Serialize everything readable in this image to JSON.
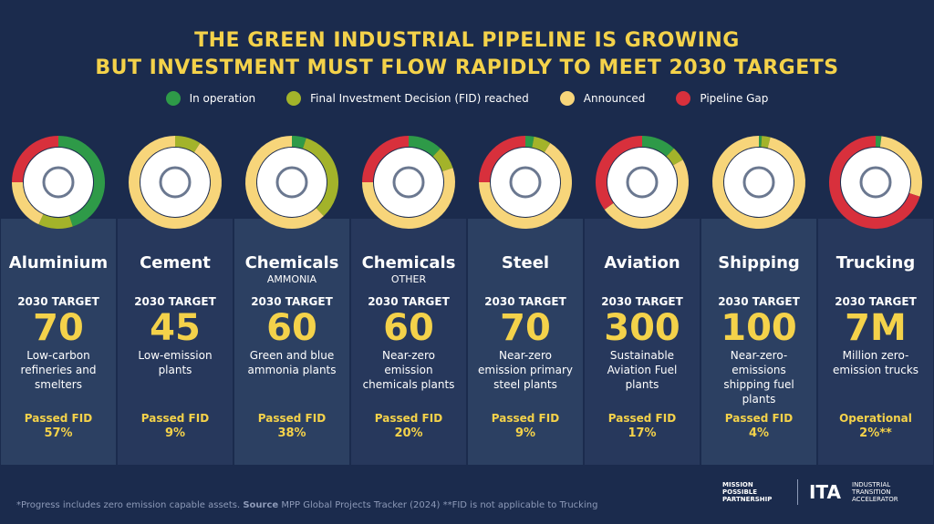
{
  "header": {
    "title_line1": "THE GREEN INDUSTRIAL PIPELINE IS GROWING",
    "title_line2": "BUT INVESTMENT MUST FLOW RAPIDLY TO MEET 2030 TARGETS"
  },
  "legend": [
    {
      "name": "In operation",
      "color": "#2e9a48"
    },
    {
      "name": "Final Investment Decision (FID) reached",
      "color": "#a3b32a"
    },
    {
      "name": "Announced",
      "color": "#f7d57a"
    },
    {
      "name": "Pipeline Gap",
      "color": "#d8303c"
    }
  ],
  "sectors": [
    {
      "name": "Aluminium",
      "target_label": "2030 TARGET",
      "target": "70",
      "description": "Low-carbon refineries and smelters",
      "status_label": "Passed FID",
      "status": "57%",
      "ring": [
        45,
        12,
        18,
        25
      ]
    },
    {
      "name": "Cement",
      "target_label": "2030 TARGET",
      "target": "45",
      "description": "Low-emission plants",
      "status_label": "Passed FID",
      "status": "9%",
      "ring": [
        0,
        9,
        91,
        0
      ]
    },
    {
      "name": "Chemicals",
      "subtitle": "AMMONIA",
      "target_label": "2030 TARGET",
      "target": "60",
      "description": "Green and blue ammonia plants",
      "status_label": "Passed FID",
      "status": "38%",
      "ring": [
        5,
        33,
        62,
        0
      ]
    },
    {
      "name": "Chemicals",
      "subtitle": "OTHER",
      "target_label": "2030 TARGET",
      "target": "60",
      "description": "Near-zero emission chemicals plants",
      "status_label": "Passed FID",
      "status": "20%",
      "ring": [
        12,
        8,
        55,
        25
      ]
    },
    {
      "name": "Steel",
      "target_label": "2030 TARGET",
      "target": "70",
      "description": "Near-zero emission primary steel plants",
      "status_label": "Passed FID",
      "status": "9%",
      "ring": [
        3,
        6,
        66,
        25
      ]
    },
    {
      "name": "Aviation",
      "target_label": "2030 TARGET",
      "target": "300",
      "description": "Sustainable Aviation Fuel plants",
      "status_label": "Passed FID",
      "status": "17%",
      "ring": [
        12,
        5,
        48,
        35
      ]
    },
    {
      "name": "Shipping",
      "target_label": "2030 TARGET",
      "target": "100",
      "description": "Near-zero-emissions shipping fuel plants",
      "status_label": "Passed FID",
      "status": "4%",
      "ring": [
        1,
        3,
        96,
        0
      ]
    },
    {
      "name": "Trucking",
      "target_label": "2030 TARGET",
      "target": "7M",
      "description": "Million zero-emission trucks",
      "status_label": "Operational",
      "status": "2%**",
      "ring": [
        2,
        0,
        28,
        70
      ]
    }
  ],
  "footnote": {
    "before": "*Progress includes zero emission capable assets.",
    "source_label": "Source",
    "after": "MPP Global Projects Tracker (2024) **FID is not applicable to Trucking"
  },
  "logos": {
    "mpp": "MISSION POSSIBLE PARTNERSHIP",
    "ita": "ITA",
    "ita_full": "INDUSTRIAL TRANSITION ACCELERATOR"
  }
}
